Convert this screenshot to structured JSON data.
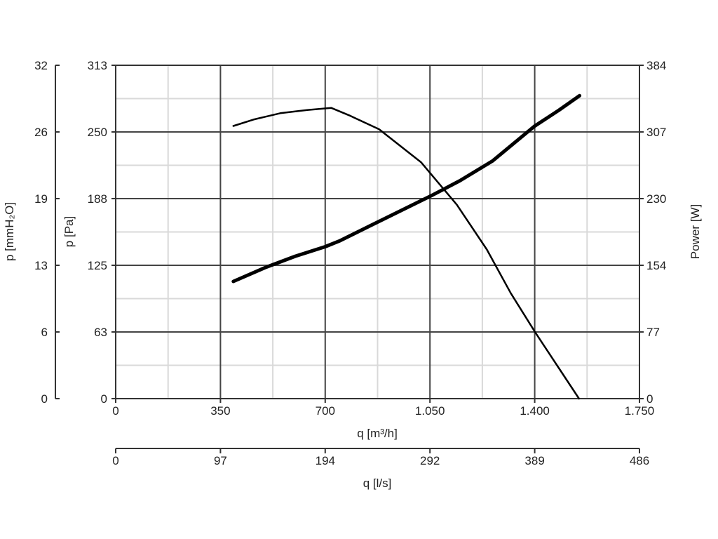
{
  "chart_data": {
    "type": "line",
    "title": "",
    "axes": {
      "x_main": {
        "label": "q [m³/h]",
        "ticks": [
          "0",
          "350",
          "700",
          "1.050",
          "1.400",
          "1.750"
        ],
        "range": [
          0,
          1750
        ]
      },
      "x_secondary": {
        "label": "q [l/s]",
        "ticks": [
          "0",
          "97",
          "194",
          "292",
          "389",
          "486"
        ],
        "range": [
          0,
          486
        ]
      },
      "y_left_outer": {
        "label": "p [mmH₂O]",
        "ticks": [
          "0",
          "6",
          "13",
          "19",
          "26",
          "32"
        ],
        "range": [
          0,
          32
        ]
      },
      "y_left": {
        "label": "p [Pa]",
        "ticks": [
          "0",
          "63",
          "125",
          "188",
          "250",
          "313"
        ],
        "range": [
          0,
          313
        ]
      },
      "y_right": {
        "label": "Power [W]",
        "ticks": [
          "0",
          "77",
          "154",
          "230",
          "307",
          "384"
        ],
        "range": [
          0,
          384
        ]
      }
    },
    "grid": true,
    "series": [
      {
        "axis": "pressure",
        "color": "#000000",
        "x": [
          393,
          460,
          550,
          640,
          720,
          780,
          880,
          1020,
          1140,
          1240,
          1320,
          1400,
          1480,
          1548
        ],
        "y": [
          256,
          262,
          268,
          271,
          273,
          266,
          253,
          222,
          182,
          140,
          99,
          63,
          29,
          0
        ]
      },
      {
        "axis": "power",
        "color": "#000000",
        "x": [
          393,
          500,
          600,
          700,
          750,
          850,
          950,
          1050,
          1150,
          1260,
          1330,
          1400,
          1480,
          1550
        ],
        "y": [
          135,
          151,
          164,
          175,
          182,
          199,
          216,
          233,
          251,
          274,
          294,
          314,
          332,
          349
        ]
      }
    ]
  }
}
